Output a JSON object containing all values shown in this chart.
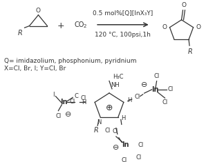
{
  "background_color": "#ffffff",
  "fig_width": 3.11,
  "fig_height": 2.35,
  "dpi": 100,
  "above_arrow": "0.5 mol%[Q][InX₃Y]",
  "below_arrow": "120 °C, 100psi,1h",
  "legend_lines": [
    "Q= imidazolium, phosphonium, pyridnium",
    "X=Cl, Br, I; Y=Cl, Br"
  ]
}
